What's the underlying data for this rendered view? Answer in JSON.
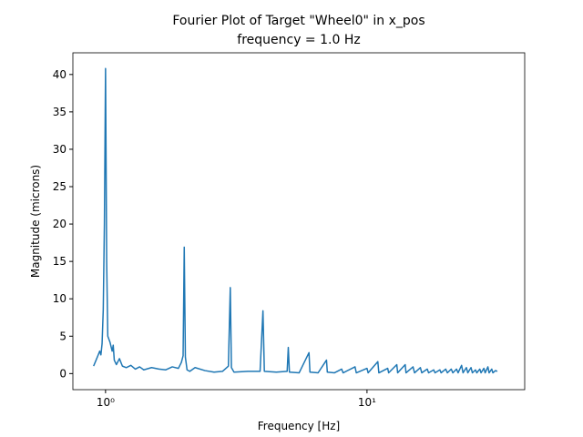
{
  "chart_data": {
    "type": "line",
    "title": "Fourier Plot of Target \"Wheel0\" in x_pos",
    "subtitle": "frequency = 1.0 Hz",
    "x_label": "Frequency [Hz]",
    "y_label": "Magnitude (microns)",
    "x_scale": "log",
    "xlim": [
      0.75,
      40.1
    ],
    "ylim": [
      -2.15,
      42.9
    ],
    "xticks": [
      {
        "value": 1,
        "label": "10⁰"
      },
      {
        "value": 10,
        "label": "10¹"
      }
    ],
    "yticks": [
      0,
      5,
      10,
      15,
      20,
      25,
      30,
      35,
      40
    ],
    "series": [
      {
        "color": "#1f77b4",
        "x": [
          0.9,
          0.92,
          0.94,
          0.95,
          0.96,
          0.97,
          0.98,
          0.99,
          1.0,
          1.01,
          1.02,
          1.04,
          1.06,
          1.07,
          1.08,
          1.1,
          1.13,
          1.16,
          1.2,
          1.25,
          1.3,
          1.35,
          1.4,
          1.5,
          1.6,
          1.7,
          1.8,
          1.9,
          1.95,
          1.98,
          2.0,
          2.02,
          2.05,
          2.1,
          2.2,
          2.4,
          2.6,
          2.8,
          2.95,
          3.0,
          3.03,
          3.1,
          3.5,
          3.9,
          4.0,
          4.05,
          4.5,
          4.95,
          5.0,
          5.05,
          5.5,
          6.0,
          6.05,
          6.5,
          7.0,
          7.05,
          7.5,
          8.0,
          8.1,
          9.0,
          9.1,
          10.0,
          10.1,
          11.0,
          11.1,
          12.0,
          12.1,
          13.0,
          13.1,
          14.0,
          14.1,
          15.0,
          15.2,
          16.0,
          16.2,
          17.0,
          17.2,
          18.0,
          18.2,
          19.0,
          19.2,
          20.0,
          20.3,
          21.0,
          21.3,
          22.0,
          22.3,
          23.0,
          23.3,
          24.0,
          24.3,
          25.0,
          25.3,
          26.0,
          26.3,
          27.0,
          27.3,
          28.0,
          28.3,
          29.0,
          29.3,
          30.0,
          30.3,
          31.0,
          31.5
        ],
        "values": [
          1.0,
          1.8,
          2.6,
          3.0,
          2.5,
          4.0,
          8.5,
          20,
          40.8,
          15,
          5,
          4.2,
          3.0,
          3.8,
          1.8,
          1.2,
          2.0,
          1.0,
          0.8,
          1.1,
          0.6,
          0.9,
          0.5,
          0.8,
          0.6,
          0.5,
          0.9,
          0.7,
          1.5,
          2.4,
          16.9,
          2.2,
          0.5,
          0.3,
          0.8,
          0.4,
          0.2,
          0.3,
          1.0,
          11.5,
          0.8,
          0.2,
          0.3,
          0.3,
          8.4,
          0.3,
          0.2,
          0.3,
          3.5,
          0.2,
          0.1,
          2.8,
          0.2,
          0.1,
          1.8,
          0.2,
          0.1,
          0.6,
          0.1,
          0.9,
          0.1,
          0.7,
          0.1,
          1.6,
          0.1,
          0.7,
          0.1,
          1.2,
          0.1,
          1.2,
          0.1,
          0.9,
          0.1,
          0.8,
          0.1,
          0.6,
          0.1,
          0.5,
          0.1,
          0.5,
          0.1,
          0.6,
          0.1,
          0.6,
          0.1,
          0.6,
          0.1,
          1.1,
          0.1,
          0.8,
          0.1,
          0.8,
          0.1,
          0.5,
          0.1,
          0.6,
          0.1,
          0.7,
          0.1,
          0.9,
          0.1,
          0.6,
          0.1,
          0.4,
          0.3
        ]
      }
    ]
  }
}
